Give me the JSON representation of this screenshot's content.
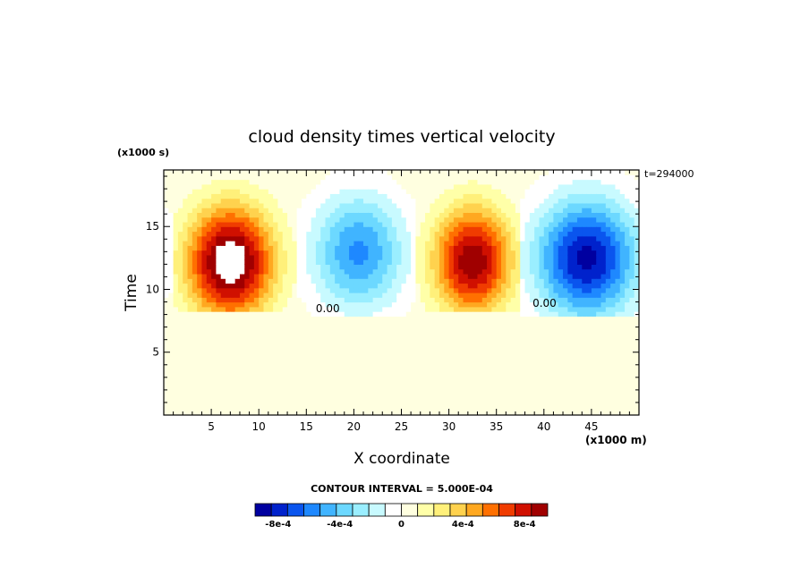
{
  "chart_data": {
    "type": "heatmap",
    "title": "cloud density times vertical velocity",
    "time_stamp": "t=294000",
    "xlabel": "X coordinate",
    "ylabel": "Time",
    "x_units": "(x1000 m)",
    "y_units": "(x1000 s)",
    "xlim": [
      0,
      50
    ],
    "ylim": [
      0,
      19.5
    ],
    "x_ticks": [
      5,
      10,
      15,
      20,
      25,
      30,
      35,
      40,
      45
    ],
    "y_ticks": [
      5,
      10,
      15
    ],
    "contour_labels": [
      {
        "text": "0.00",
        "x": 16,
        "y": 8.2
      },
      {
        "text": "0.00",
        "x": 38.8,
        "y": 8.6
      }
    ],
    "contour_interval_label": "CONTOUR INTERVAL = 5.000E-04",
    "colorbar": {
      "colors": [
        "#0000a0",
        "#0022cc",
        "#0a55ee",
        "#1e88ff",
        "#40b4ff",
        "#6cd8ff",
        "#9aeeff",
        "#c8faff",
        "#ffffff",
        "#ffffe0",
        "#ffffa8",
        "#fff07a",
        "#ffd24e",
        "#ffa820",
        "#ff7000",
        "#f03c00",
        "#d01000",
        "#a00000"
      ],
      "tick_labels": [
        "-8e-4",
        "-4e-4",
        "0",
        "4e-4",
        "8e-4"
      ],
      "tick_values": [
        -0.0008,
        -0.0004,
        0,
        0.0004,
        0.0008
      ],
      "vmin": -0.00095,
      "vmax": 0.00095
    },
    "background_value": 2e-05,
    "cells": [
      {
        "sign": 1,
        "x": [
          0.5,
          14
        ],
        "y": [
          8.2,
          19.5
        ],
        "cx": 7,
        "cy": 12.2,
        "rx": 6.2,
        "ry": 6.0,
        "peak": 0.0011
      },
      {
        "sign": -1,
        "x": [
          14,
          26.5
        ],
        "y": [
          8.0,
          19.5
        ],
        "cx": 20.5,
        "cy": 13,
        "rx": 6.6,
        "ry": 6.2,
        "peak": 0.00062
      },
      {
        "sign": 1,
        "x": [
          26.5,
          37.3
        ],
        "y": [
          8.2,
          19.5
        ],
        "cx": 32.5,
        "cy": 12.3,
        "rx": 5.6,
        "ry": 5.8,
        "peak": 0.00095
      },
      {
        "sign": -1,
        "x": [
          37.3,
          50
        ],
        "y": [
          8.0,
          19.5
        ],
        "cx": 44.5,
        "cy": 12.5,
        "rx": 7.2,
        "ry": 6.4,
        "peak": 0.00095
      },
      {
        "sign": -1,
        "x": [
          0,
          1.2
        ],
        "y": [
          8.0,
          19.5
        ],
        "cx": 0,
        "cy": 13,
        "rx": 2.5,
        "ry": 5.5,
        "peak": 0.00015
      }
    ]
  }
}
